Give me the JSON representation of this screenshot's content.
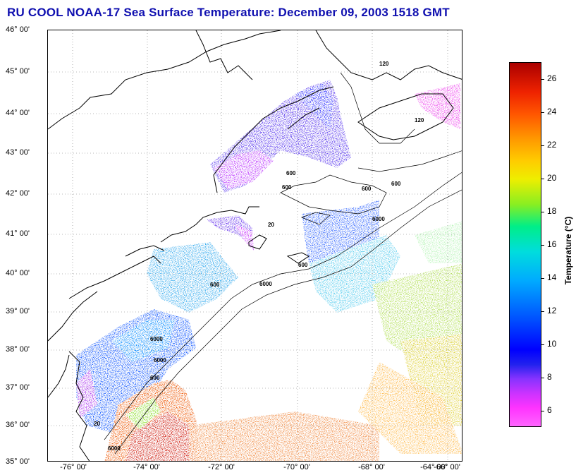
{
  "title": "RU COOL  NOAA-17  Sea Surface Temperature:  December 09, 2003 1518 GMT",
  "latitude_labels": [
    "46° 00'",
    "45° 00'",
    "44° 00'",
    "43° 00'",
    "42° 00'",
    "41° 00'",
    "40° 00'",
    "39° 00'",
    "38° 00'",
    "37° 00'",
    "36° 00'",
    "35° 00'"
  ],
  "longitude_labels": [
    "-76° 00'",
    "-74° 00'",
    "-72° 00'",
    "-70° 00'",
    "-68° 00'",
    "-66° 00'",
    "-64° 00'"
  ],
  "contour_labels": [
    "120",
    "120",
    "600",
    "600",
    "600",
    "600",
    "20",
    "6000",
    "6000",
    "600",
    "600",
    "6000",
    "600",
    "20",
    "6000",
    "6000"
  ],
  "colorbar": {
    "label": "Temperature (°C)",
    "ticks": [
      "26",
      "24",
      "22",
      "20",
      "18",
      "16",
      "14",
      "12",
      "10",
      "8",
      "6"
    ],
    "min": 5,
    "max": 27
  },
  "colors": {
    "title": "#1010b0",
    "cold": "#ff33ff",
    "mid": "#0000ff",
    "warm": "#aa0000"
  }
}
